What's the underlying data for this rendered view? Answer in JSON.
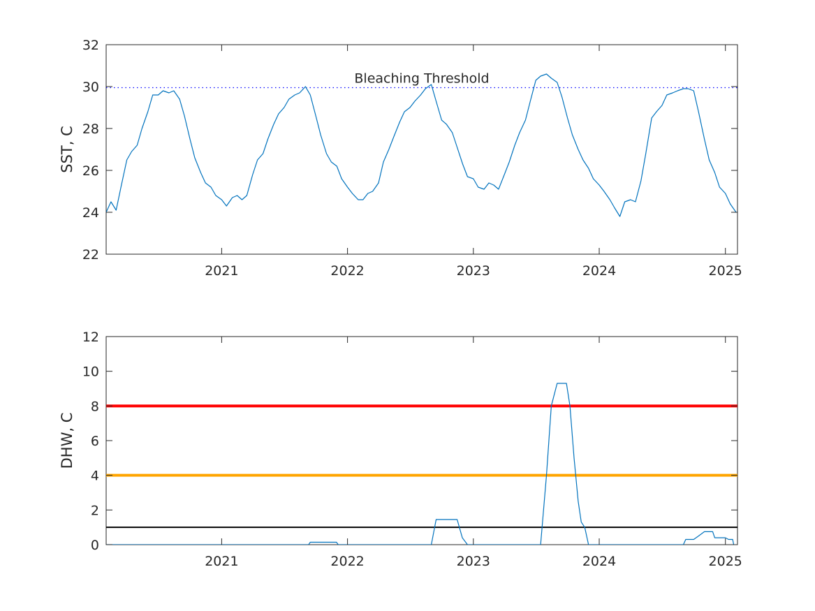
{
  "chart_data": [
    {
      "type": "line",
      "title": "",
      "xlabel": "",
      "ylabel": "SST, C",
      "xlim": [
        "2020-02-01",
        "2025-02-05"
      ],
      "ylim": [
        22,
        32
      ],
      "x_ticks": [
        "2021",
        "2022",
        "2023",
        "2024",
        "2025"
      ],
      "y_ticks": [
        "22",
        "24",
        "26",
        "28",
        "30",
        "32"
      ],
      "grid": false,
      "series": [
        {
          "color": "#0072BD",
          "points": [
            [
              "2020-02-01",
              24.0
            ],
            [
              "2020-02-15",
              24.5
            ],
            [
              "2020-03-01",
              24.1
            ],
            [
              "2020-03-15",
              25.2
            ],
            [
              "2020-04-01",
              26.5
            ],
            [
              "2020-04-15",
              26.9
            ],
            [
              "2020-05-01",
              27.2
            ],
            [
              "2020-05-15",
              28.0
            ],
            [
              "2020-06-01",
              28.8
            ],
            [
              "2020-06-15",
              29.6
            ],
            [
              "2020-07-01",
              29.6
            ],
            [
              "2020-07-15",
              29.8
            ],
            [
              "2020-08-01",
              29.7
            ],
            [
              "2020-08-15",
              29.8
            ],
            [
              "2020-09-01",
              29.4
            ],
            [
              "2020-09-15",
              28.6
            ],
            [
              "2020-10-01",
              27.5
            ],
            [
              "2020-10-15",
              26.6
            ],
            [
              "2020-11-01",
              25.9
            ],
            [
              "2020-11-15",
              25.4
            ],
            [
              "2020-12-01",
              25.2
            ],
            [
              "2020-12-15",
              24.8
            ],
            [
              "2021-01-01",
              24.6
            ],
            [
              "2021-01-15",
              24.3
            ],
            [
              "2021-02-01",
              24.7
            ],
            [
              "2021-02-15",
              24.8
            ],
            [
              "2021-03-01",
              24.6
            ],
            [
              "2021-03-15",
              24.8
            ],
            [
              "2021-04-01",
              25.8
            ],
            [
              "2021-04-15",
              26.5
            ],
            [
              "2021-05-01",
              26.8
            ],
            [
              "2021-05-15",
              27.5
            ],
            [
              "2021-06-01",
              28.2
            ],
            [
              "2021-06-15",
              28.7
            ],
            [
              "2021-07-01",
              29.0
            ],
            [
              "2021-07-15",
              29.4
            ],
            [
              "2021-08-01",
              29.6
            ],
            [
              "2021-08-15",
              29.7
            ],
            [
              "2021-09-01",
              30.0
            ],
            [
              "2021-09-15",
              29.6
            ],
            [
              "2021-10-01",
              28.6
            ],
            [
              "2021-10-15",
              27.7
            ],
            [
              "2021-11-01",
              26.8
            ],
            [
              "2021-11-15",
              26.4
            ],
            [
              "2021-12-01",
              26.2
            ],
            [
              "2021-12-15",
              25.6
            ],
            [
              "2022-01-01",
              25.2
            ],
            [
              "2022-01-15",
              24.9
            ],
            [
              "2022-02-01",
              24.6
            ],
            [
              "2022-02-15",
              24.6
            ],
            [
              "2022-03-01",
              24.9
            ],
            [
              "2022-03-15",
              25.0
            ],
            [
              "2022-04-01",
              25.4
            ],
            [
              "2022-04-15",
              26.4
            ],
            [
              "2022-05-01",
              27.0
            ],
            [
              "2022-05-15",
              27.6
            ],
            [
              "2022-06-01",
              28.3
            ],
            [
              "2022-06-15",
              28.8
            ],
            [
              "2022-07-01",
              29.0
            ],
            [
              "2022-07-15",
              29.3
            ],
            [
              "2022-08-01",
              29.6
            ],
            [
              "2022-08-15",
              29.9
            ],
            [
              "2022-09-01",
              30.1
            ],
            [
              "2022-09-15",
              29.3
            ],
            [
              "2022-10-01",
              28.4
            ],
            [
              "2022-10-15",
              28.2
            ],
            [
              "2022-11-01",
              27.8
            ],
            [
              "2022-11-15",
              27.1
            ],
            [
              "2022-12-01",
              26.3
            ],
            [
              "2022-12-15",
              25.7
            ],
            [
              "2023-01-01",
              25.6
            ],
            [
              "2023-01-15",
              25.2
            ],
            [
              "2023-02-01",
              25.1
            ],
            [
              "2023-02-15",
              25.4
            ],
            [
              "2023-03-01",
              25.3
            ],
            [
              "2023-03-15",
              25.1
            ],
            [
              "2023-04-01",
              25.8
            ],
            [
              "2023-04-15",
              26.4
            ],
            [
              "2023-05-01",
              27.2
            ],
            [
              "2023-05-15",
              27.8
            ],
            [
              "2023-06-01",
              28.4
            ],
            [
              "2023-06-15",
              29.3
            ],
            [
              "2023-07-01",
              30.3
            ],
            [
              "2023-07-15",
              30.5
            ],
            [
              "2023-08-01",
              30.6
            ],
            [
              "2023-08-15",
              30.4
            ],
            [
              "2023-09-01",
              30.2
            ],
            [
              "2023-09-15",
              29.5
            ],
            [
              "2023-10-01",
              28.5
            ],
            [
              "2023-10-15",
              27.7
            ],
            [
              "2023-11-01",
              27.0
            ],
            [
              "2023-11-15",
              26.5
            ],
            [
              "2023-12-01",
              26.1
            ],
            [
              "2023-12-15",
              25.6
            ],
            [
              "2024-01-01",
              25.3
            ],
            [
              "2024-01-15",
              25.0
            ],
            [
              "2024-02-01",
              24.6
            ],
            [
              "2024-02-15",
              24.2
            ],
            [
              "2024-03-01",
              23.8
            ],
            [
              "2024-03-15",
              24.5
            ],
            [
              "2024-04-01",
              24.6
            ],
            [
              "2024-04-15",
              24.5
            ],
            [
              "2024-05-01",
              25.5
            ],
            [
              "2024-05-15",
              26.8
            ],
            [
              "2024-06-01",
              28.5
            ],
            [
              "2024-06-15",
              28.8
            ],
            [
              "2024-07-01",
              29.1
            ],
            [
              "2024-07-15",
              29.6
            ],
            [
              "2024-08-01",
              29.7
            ],
            [
              "2024-08-15",
              29.8
            ],
            [
              "2024-09-01",
              29.9
            ],
            [
              "2024-09-15",
              29.9
            ],
            [
              "2024-10-01",
              29.8
            ],
            [
              "2024-10-15",
              28.8
            ],
            [
              "2024-11-01",
              27.5
            ],
            [
              "2024-11-15",
              26.5
            ],
            [
              "2024-12-01",
              25.9
            ],
            [
              "2024-12-15",
              25.2
            ],
            [
              "2025-01-01",
              24.9
            ],
            [
              "2025-01-15",
              24.4
            ],
            [
              "2025-02-01",
              24.0
            ]
          ]
        }
      ],
      "reference_lines": [
        {
          "y": 29.95,
          "label": "Bleaching Threshold",
          "color": "#0000FF",
          "style": "dotted"
        }
      ]
    },
    {
      "type": "line",
      "title": "",
      "xlabel": "",
      "ylabel": "DHW, C",
      "xlim": [
        "2020-02-01",
        "2025-02-05"
      ],
      "ylim": [
        0,
        12
      ],
      "x_ticks": [
        "2021",
        "2022",
        "2023",
        "2024",
        "2025"
      ],
      "y_ticks": [
        "0",
        "2",
        "4",
        "6",
        "8",
        "10",
        "12"
      ],
      "grid": false,
      "series": [
        {
          "color": "#0072BD",
          "points": [
            [
              "2020-02-01",
              0
            ],
            [
              "2021-09-10",
              0
            ],
            [
              "2021-09-15",
              0.14
            ],
            [
              "2021-11-30",
              0.14
            ],
            [
              "2021-12-05",
              0
            ],
            [
              "2022-09-01",
              0
            ],
            [
              "2022-09-15",
              1.45
            ],
            [
              "2022-11-15",
              1.45
            ],
            [
              "2022-11-30",
              0.4
            ],
            [
              "2022-12-15",
              0
            ],
            [
              "2023-07-15",
              0
            ],
            [
              "2023-08-01",
              4.0
            ],
            [
              "2023-08-15",
              8.0
            ],
            [
              "2023-09-01",
              9.3
            ],
            [
              "2023-09-15",
              9.3
            ],
            [
              "2023-09-28",
              9.3
            ],
            [
              "2023-10-08",
              8.0
            ],
            [
              "2023-10-20",
              5.0
            ],
            [
              "2023-11-01",
              2.5
            ],
            [
              "2023-11-10",
              1.3
            ],
            [
              "2023-11-20",
              1.0
            ],
            [
              "2023-12-01",
              0
            ],
            [
              "2024-09-01",
              0
            ],
            [
              "2024-09-08",
              0.3
            ],
            [
              "2024-10-01",
              0.3
            ],
            [
              "2024-10-15",
              0.5
            ],
            [
              "2024-11-01",
              0.75
            ],
            [
              "2024-11-25",
              0.75
            ],
            [
              "2024-12-01",
              0.4
            ],
            [
              "2025-01-01",
              0.4
            ],
            [
              "2025-01-10",
              0.3
            ],
            [
              "2025-01-22",
              0.3
            ],
            [
              "2025-01-25",
              0
            ]
          ]
        }
      ],
      "reference_lines": [
        {
          "y": 8,
          "color": "#FF0000",
          "style": "solid"
        },
        {
          "y": 4,
          "color": "#FFA500",
          "style": "solid"
        },
        {
          "y": 1,
          "color": "#000000",
          "style": "solid"
        }
      ]
    }
  ]
}
